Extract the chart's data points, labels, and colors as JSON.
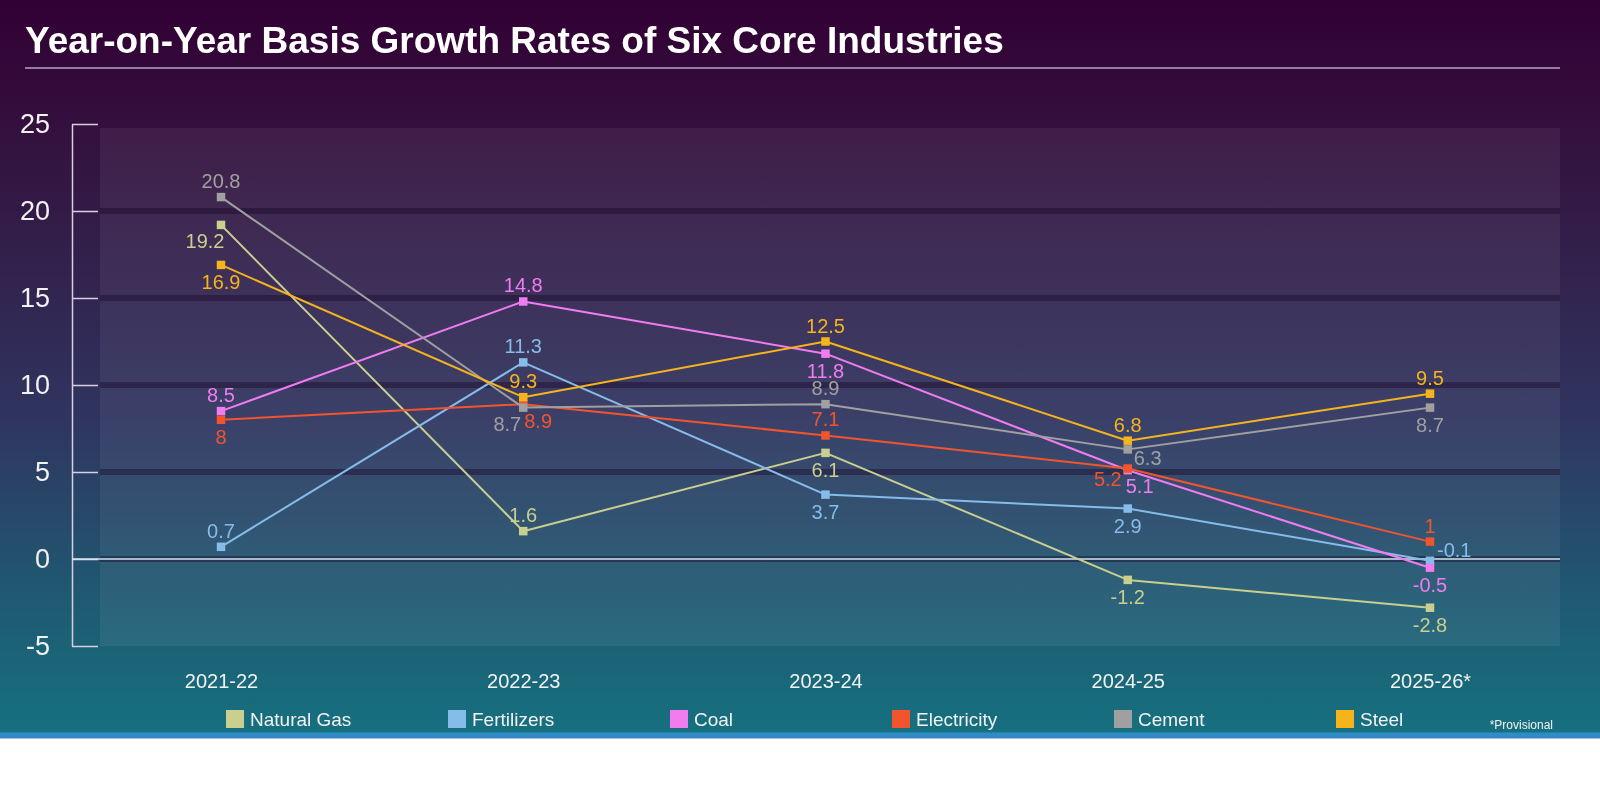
{
  "chart_data": {
    "type": "line",
    "title": "Year-on-Year Basis Growth Rates of Six Core Industries",
    "categories": [
      "2021-22",
      "2022-23",
      "2023-24",
      "2024-25",
      "2025-26*"
    ],
    "series": [
      {
        "name": "Natural Gas",
        "color": "#c9cf8f",
        "values": [
          19.2,
          1.6,
          6.1,
          -1.2,
          -2.8
        ]
      },
      {
        "name": "Fertilizers",
        "color": "#86bcea",
        "values": [
          0.7,
          11.3,
          3.7,
          2.9,
          -0.1
        ]
      },
      {
        "name": "Coal",
        "color": "#f07cf0",
        "values": [
          8.5,
          14.8,
          11.8,
          5.1,
          -0.5
        ]
      },
      {
        "name": "Electricity",
        "color": "#f2542e",
        "values": [
          8,
          8.9,
          7.1,
          5.2,
          1
        ]
      },
      {
        "name": "Cement",
        "color": "#a0a0a0",
        "values": [
          20.8,
          8.7,
          8.9,
          6.3,
          8.7
        ]
      },
      {
        "name": "Steel",
        "color": "#f5b41b",
        "values": [
          16.9,
          9.3,
          12.5,
          6.8,
          9.5
        ]
      }
    ],
    "ylim": [
      -5,
      25
    ],
    "yticks": [
      -5,
      0,
      5,
      10,
      15,
      20,
      25
    ],
    "grid": "y",
    "legend": "bottom",
    "marker": "square",
    "line_style": "solid",
    "data_labels": true,
    "annotations": [
      "*Provisional"
    ]
  }
}
